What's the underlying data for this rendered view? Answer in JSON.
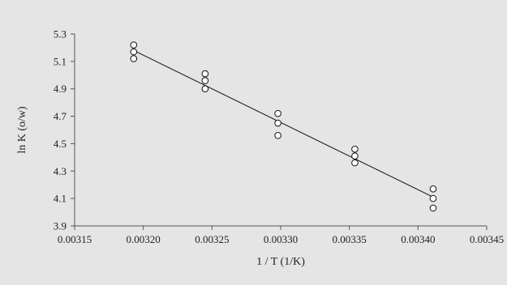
{
  "chart_data": {
    "type": "scatter",
    "title": "",
    "xlabel": "1 / T (1/K)",
    "ylabel": "ln K (o/w)",
    "xlim": [
      0.00315,
      0.00345
    ],
    "ylim": [
      3.9,
      5.3
    ],
    "x_ticks": [
      "0.00315",
      "0.00320",
      "0.00325",
      "0.00330",
      "0.00335",
      "0.00340",
      "0.00345"
    ],
    "y_ticks": [
      "3.9",
      "4.1",
      "4.3",
      "4.5",
      "4.7",
      "4.9",
      "5.1",
      "5.3"
    ],
    "grid": false,
    "series": [
      {
        "marker": "open-circle",
        "points": [
          {
            "x": 0.003193,
            "y": 5.22
          },
          {
            "x": 0.003193,
            "y": 5.17
          },
          {
            "x": 0.003193,
            "y": 5.12
          },
          {
            "x": 0.003245,
            "y": 5.01
          },
          {
            "x": 0.003245,
            "y": 4.96
          },
          {
            "x": 0.003245,
            "y": 4.9
          },
          {
            "x": 0.003298,
            "y": 4.72
          },
          {
            "x": 0.003298,
            "y": 4.65
          },
          {
            "x": 0.003298,
            "y": 4.56
          },
          {
            "x": 0.003354,
            "y": 4.46
          },
          {
            "x": 0.003354,
            "y": 4.41
          },
          {
            "x": 0.003354,
            "y": 4.36
          },
          {
            "x": 0.003411,
            "y": 4.17
          },
          {
            "x": 0.003411,
            "y": 4.1
          },
          {
            "x": 0.003411,
            "y": 4.03
          }
        ]
      }
    ],
    "trendline": {
      "type": "linear",
      "from": {
        "x": 0.003193,
        "y": 5.18
      },
      "to": {
        "x": 0.003411,
        "y": 4.11
      }
    },
    "colors": {
      "background": "#e5e5e5",
      "axis": "#555555",
      "line": "#111111",
      "marker_fill": "#ffffff"
    }
  }
}
